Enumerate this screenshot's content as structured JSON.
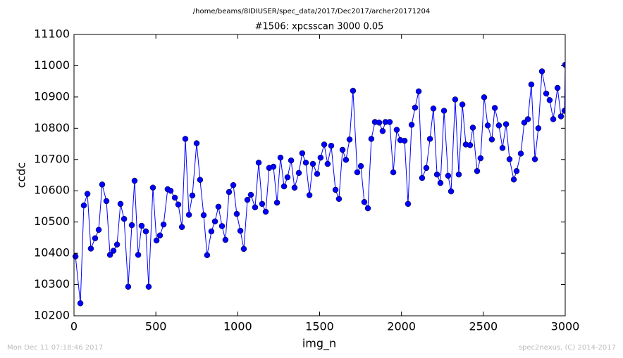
{
  "chart_data": {
    "type": "line",
    "title": "/home/beams/8IDIUSER/spec_data/2017/Dec2017/archer20171204",
    "subtitle": "#1506: xpcsscan 3000 0.05",
    "x_label": "img_n",
    "y_label": "ccdc",
    "annotations": [
      "Mon Dec 11 07:18:46 2017",
      "spec2nexus, (C) 2014-2017"
    ],
    "xlim": [
      0,
      3000
    ],
    "xticks": [
      0,
      500,
      1000,
      1500,
      2000,
      2500,
      3000
    ],
    "ylim": [
      10200,
      11100
    ],
    "yticks": [
      10200,
      10300,
      10400,
      10500,
      10600,
      10700,
      10800,
      10900,
      11000,
      11100
    ],
    "marker": "circle",
    "series": [
      {
        "color": "#0000ff",
        "x": [
          9,
          39,
          60,
          82,
          103,
          129,
          151,
          172,
          198,
          220,
          241,
          263,
          284,
          306,
          331,
          353,
          370,
          392,
          413,
          439,
          456,
          482,
          504,
          525,
          547,
          572,
          590,
          616,
          637,
          659,
          680,
          702,
          723,
          749,
          770,
          792,
          813,
          839,
          861,
          882,
          904,
          925,
          947,
          973,
          994,
          1016,
          1037,
          1059,
          1080,
          1106,
          1128,
          1149,
          1171,
          1192,
          1218,
          1240,
          1261,
          1283,
          1304,
          1326,
          1347,
          1373,
          1394,
          1416,
          1438,
          1459,
          1485,
          1506,
          1528,
          1549,
          1571,
          1597,
          1618,
          1640,
          1661,
          1683,
          1704,
          1730,
          1752,
          1773,
          1795,
          1816,
          1838,
          1864,
          1885,
          1902,
          1928,
          1950,
          1971,
          1993,
          2019,
          2040,
          2062,
          2083,
          2105,
          2126,
          2152,
          2174,
          2195,
          2217,
          2238,
          2260,
          2285,
          2303,
          2328,
          2350,
          2372,
          2393,
          2419,
          2436,
          2462,
          2483,
          2505,
          2527,
          2552,
          2570,
          2595,
          2617,
          2639,
          2660,
          2686,
          2703,
          2729,
          2750,
          2772,
          2793,
          2815,
          2836,
          2858,
          2884,
          2905,
          2927,
          2953,
          2974,
          2996,
          3000
        ],
        "values": [
          10390,
          10240,
          10553,
          10590,
          10415,
          10448,
          10475,
          10620,
          10567,
          10395,
          10408,
          10428,
          10558,
          10510,
          10293,
          10490,
          10632,
          10395,
          10488,
          10470,
          10293,
          10610,
          10441,
          10457,
          10492,
          10605,
          10600,
          10578,
          10556,
          10484,
          10766,
          10523,
          10585,
          10752,
          10635,
          10522,
          10394,
          10470,
          10502,
          10549,
          10487,
          10443,
          10596,
          10618,
          10526,
          10472,
          10414,
          10571,
          10587,
          10547,
          10690,
          10558,
          10533,
          10673,
          10677,
          10562,
          10706,
          10614,
          10643,
          10697,
          10610,
          10657,
          10720,
          10690,
          10586,
          10686,
          10654,
          10706,
          10748,
          10686,
          10744,
          10603,
          10574,
          10731,
          10699,
          10764,
          10920,
          10659,
          10679,
          10564,
          10544,
          10766,
          10820,
          10818,
          10791,
          10820,
          10820,
          10659,
          10795,
          10762,
          10760,
          10558,
          10811,
          10866,
          10918,
          10641,
          10673,
          10766,
          10863,
          10652,
          10625,
          10856,
          10648,
          10598,
          10892,
          10652,
          10876,
          10748,
          10746,
          10802,
          10663,
          10704,
          10899,
          10809,
          10764,
          10865,
          10809,
          10737,
          10813,
          10701,
          10636,
          10663,
          10719,
          10818,
          10829,
          10940,
          10701,
          10800,
          10982,
          10911,
          10890,
          10829,
          10929,
          10838,
          10856,
          11003
        ]
      }
    ]
  }
}
